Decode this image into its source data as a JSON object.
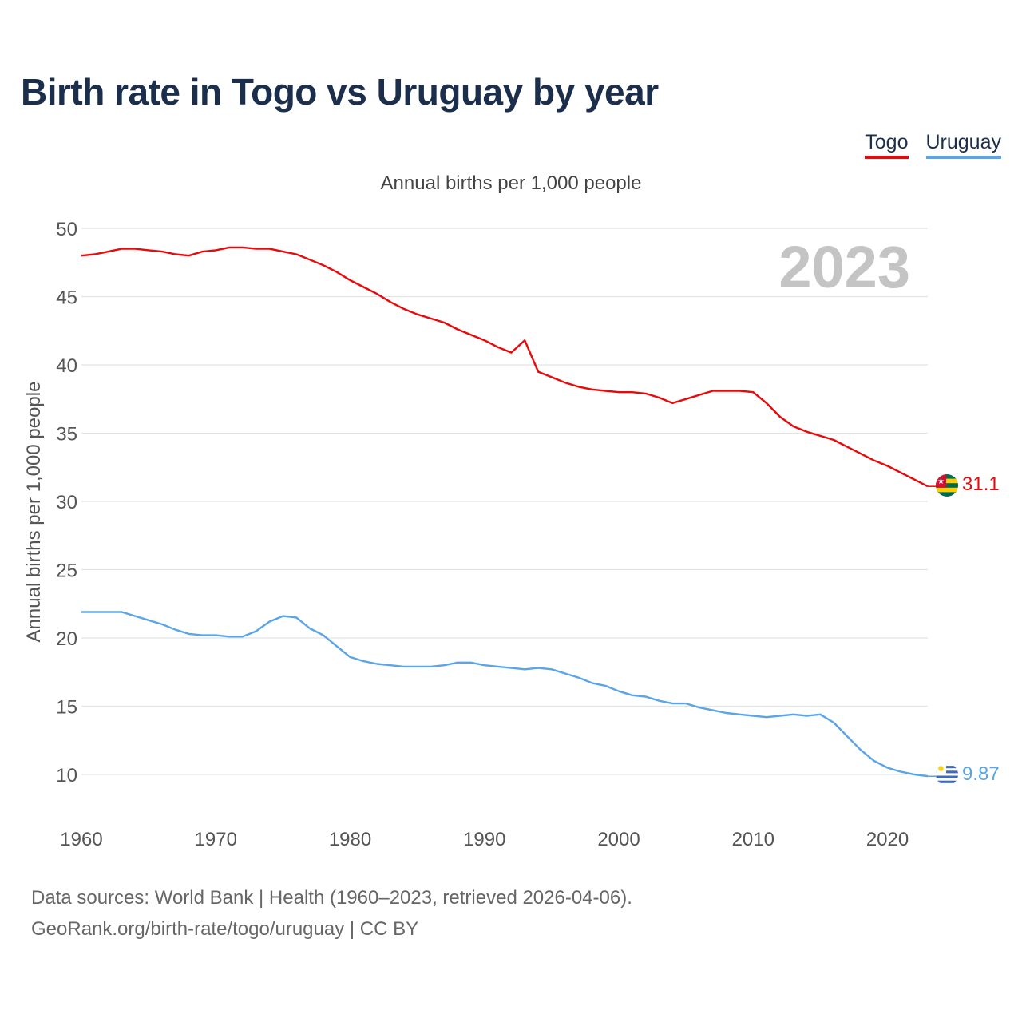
{
  "page": {
    "title": "Birth rate in Togo vs Uruguay by year",
    "subtitle": "Annual births per 1,000 people",
    "footer_line1": "Data sources: World Bank | Health (1960–2023, retrieved 2026-04-06).",
    "footer_line2": "GeoRank.org/birth-rate/togo/uruguay | CC BY",
    "year_watermark": "2023"
  },
  "legend": [
    {
      "label": "Togo",
      "color": "#e8090a"
    },
    {
      "label": "Uruguay",
      "color": "#5aa5e8"
    }
  ],
  "chart_data": {
    "type": "line",
    "title": "Birth rate in Togo vs Uruguay by year",
    "ylabel": "Annual births per 1,000 people",
    "xlabel": "",
    "xlim": [
      1960,
      2023
    ],
    "ylim": [
      7.5,
      50
    ],
    "y_ticks": [
      10,
      15,
      20,
      25,
      30,
      35,
      40,
      45,
      50
    ],
    "x_ticks": [
      1960,
      1970,
      1980,
      1990,
      2000,
      2010,
      2020
    ],
    "grid": true,
    "x": [
      1960,
      1961,
      1962,
      1963,
      1964,
      1965,
      1966,
      1967,
      1968,
      1969,
      1970,
      1971,
      1972,
      1973,
      1974,
      1975,
      1976,
      1977,
      1978,
      1979,
      1980,
      1981,
      1982,
      1983,
      1984,
      1985,
      1986,
      1987,
      1988,
      1989,
      1990,
      1991,
      1992,
      1993,
      1994,
      1995,
      1996,
      1997,
      1998,
      1999,
      2000,
      2001,
      2002,
      2003,
      2004,
      2005,
      2006,
      2007,
      2008,
      2009,
      2010,
      2011,
      2012,
      2013,
      2014,
      2015,
      2016,
      2017,
      2018,
      2019,
      2020,
      2021,
      2022,
      2023
    ],
    "series": [
      {
        "name": "Togo",
        "color": "#e8090a",
        "end_label": "31.1",
        "values": [
          48.0,
          48.1,
          48.3,
          48.5,
          48.5,
          48.4,
          48.3,
          48.1,
          48.0,
          48.3,
          48.4,
          48.6,
          48.6,
          48.5,
          48.5,
          48.3,
          48.1,
          47.7,
          47.3,
          46.8,
          46.2,
          45.7,
          45.2,
          44.6,
          44.1,
          43.7,
          43.4,
          43.1,
          42.6,
          42.2,
          41.8,
          41.3,
          40.9,
          41.8,
          39.5,
          39.1,
          38.7,
          38.4,
          38.2,
          38.1,
          38.0,
          38.0,
          37.9,
          37.6,
          37.2,
          37.5,
          37.8,
          38.1,
          38.1,
          38.1,
          38.0,
          37.2,
          36.2,
          35.5,
          35.1,
          34.8,
          34.5,
          34.0,
          33.5,
          33.0,
          32.6,
          32.1,
          31.6,
          31.1
        ]
      },
      {
        "name": "Uruguay",
        "color": "#5aa5e8",
        "end_label": "9.87",
        "values": [
          21.9,
          21.9,
          21.9,
          21.9,
          21.6,
          21.3,
          21.0,
          20.6,
          20.3,
          20.2,
          20.2,
          20.1,
          20.1,
          20.5,
          21.2,
          21.6,
          21.5,
          20.7,
          20.2,
          19.4,
          18.6,
          18.3,
          18.1,
          18.0,
          17.9,
          17.9,
          17.9,
          18.0,
          18.2,
          18.2,
          18.0,
          17.9,
          17.8,
          17.7,
          17.8,
          17.7,
          17.4,
          17.1,
          16.7,
          16.5,
          16.1,
          15.8,
          15.7,
          15.4,
          15.2,
          15.2,
          14.9,
          14.7,
          14.5,
          14.4,
          14.3,
          14.2,
          14.3,
          14.4,
          14.3,
          14.4,
          13.8,
          12.8,
          11.8,
          11.0,
          10.5,
          10.2,
          10.0,
          9.87
        ]
      }
    ]
  }
}
